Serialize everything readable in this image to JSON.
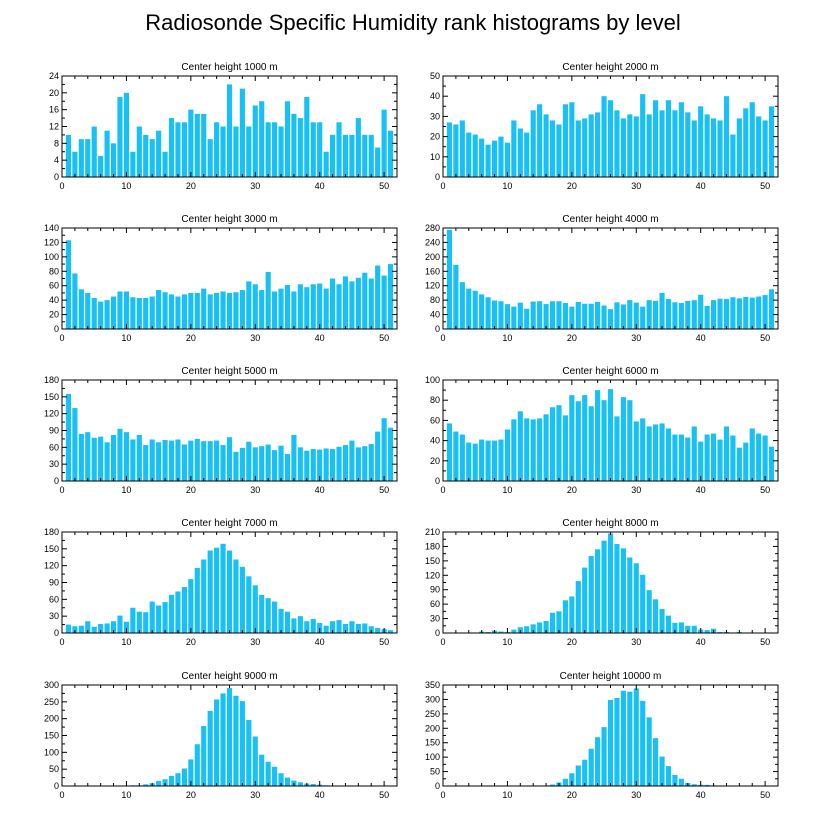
{
  "chart_data": {
    "type": "bar",
    "title": "Radiosonde Specific Humidity rank histograms by level",
    "x_ticks": [
      0,
      10,
      20,
      30,
      40,
      50
    ],
    "panels": [
      {
        "title": "Center height 1000 m",
        "ylim": [
          0,
          24
        ],
        "yticks": [
          0,
          4,
          8,
          12,
          16,
          20,
          24
        ],
        "values": [
          10,
          6,
          9,
          9,
          12,
          5,
          11,
          8,
          19,
          20,
          6,
          12,
          10,
          9,
          11,
          6,
          14,
          13,
          13,
          16,
          15,
          15,
          9,
          13,
          12,
          22,
          12,
          21,
          12,
          17,
          18,
          13,
          13,
          12,
          18,
          15,
          14,
          19,
          13,
          13,
          6,
          10,
          13,
          10,
          10,
          14,
          10,
          10,
          7,
          16,
          11
        ]
      },
      {
        "title": "Center height 2000 m",
        "ylim": [
          0,
          50
        ],
        "yticks": [
          0,
          10,
          20,
          30,
          40,
          50
        ],
        "values": [
          27,
          26,
          28,
          22,
          21,
          19,
          16,
          18,
          20,
          17,
          28,
          24,
          22,
          33,
          36,
          31,
          28,
          26,
          36,
          37,
          28,
          29,
          31,
          32,
          40,
          38,
          33,
          29,
          31,
          30,
          41,
          31,
          38,
          33,
          38,
          33,
          37,
          32,
          28,
          35,
          31,
          29,
          28,
          40,
          21,
          29,
          34,
          37,
          30,
          28,
          35
        ]
      },
      {
        "title": "Center height 3000 m",
        "ylim": [
          0,
          140
        ],
        "yticks": [
          0,
          20,
          40,
          60,
          80,
          100,
          120,
          140
        ],
        "values": [
          123,
          77,
          55,
          50,
          43,
          38,
          40,
          45,
          52,
          52,
          44,
          43,
          43,
          45,
          54,
          51,
          48,
          45,
          48,
          50,
          50,
          56,
          48,
          50,
          52,
          50,
          51,
          54,
          66,
          62,
          54,
          79,
          52,
          56,
          61,
          52,
          62,
          58,
          62,
          63,
          56,
          70,
          62,
          73,
          66,
          71,
          78,
          70,
          88,
          74,
          90
        ]
      },
      {
        "title": "Center height 4000 m",
        "ylim": [
          0,
          280
        ],
        "yticks": [
          0,
          40,
          80,
          120,
          160,
          200,
          240,
          280
        ],
        "values": [
          275,
          178,
          130,
          112,
          106,
          96,
          88,
          79,
          77,
          69,
          62,
          73,
          56,
          76,
          77,
          69,
          77,
          77,
          72,
          62,
          75,
          70,
          70,
          75,
          65,
          55,
          74,
          68,
          80,
          73,
          62,
          80,
          78,
          100,
          83,
          74,
          72,
          78,
          80,
          95,
          64,
          80,
          84,
          83,
          88,
          85,
          89,
          87,
          90,
          94,
          110
        ]
      },
      {
        "title": "Center height 5000 m",
        "ylim": [
          0,
          180
        ],
        "yticks": [
          0,
          30,
          60,
          90,
          120,
          150,
          180
        ],
        "values": [
          155,
          130,
          84,
          87,
          77,
          79,
          69,
          82,
          93,
          87,
          74,
          82,
          64,
          74,
          69,
          73,
          72,
          74,
          65,
          72,
          75,
          71,
          71,
          72,
          64,
          78,
          52,
          59,
          70,
          60,
          62,
          65,
          55,
          63,
          48,
          82,
          60,
          54,
          57,
          56,
          58,
          57,
          61,
          64,
          72,
          60,
          62,
          66,
          88,
          112,
          95
        ]
      },
      {
        "title": "Center height 6000 m",
        "ylim": [
          0,
          100
        ],
        "yticks": [
          0,
          20,
          40,
          60,
          80,
          100
        ],
        "values": [
          57,
          49,
          46,
          38,
          37,
          41,
          40,
          40,
          41,
          51,
          61,
          69,
          62,
          61,
          62,
          66,
          73,
          75,
          65,
          85,
          79,
          85,
          74,
          90,
          80,
          91,
          64,
          83,
          80,
          59,
          62,
          54,
          56,
          57,
          52,
          46,
          46,
          43,
          54,
          39,
          46,
          47,
          41,
          54,
          45,
          33,
          38,
          52,
          47,
          45,
          34
        ]
      },
      {
        "title": "Center height 7000 m",
        "ylim": [
          0,
          180
        ],
        "yticks": [
          0,
          30,
          60,
          90,
          120,
          150,
          180
        ],
        "values": [
          15,
          12,
          13,
          21,
          11,
          16,
          17,
          21,
          31,
          20,
          45,
          38,
          37,
          56,
          49,
          55,
          68,
          74,
          82,
          96,
          116,
          131,
          147,
          152,
          159,
          147,
          131,
          118,
          101,
          85,
          68,
          62,
          56,
          43,
          38,
          26,
          30,
          21,
          25,
          18,
          13,
          21,
          23,
          16,
          21,
          16,
          17,
          12,
          9,
          7,
          5
        ]
      },
      {
        "title": "Center height 8000 m",
        "ylim": [
          0,
          210
        ],
        "yticks": [
          0,
          30,
          60,
          90,
          120,
          150,
          180,
          210
        ],
        "values": [
          0,
          0,
          0,
          1,
          1,
          3,
          2,
          5,
          3,
          2,
          7,
          12,
          14,
          18,
          22,
          25,
          42,
          45,
          68,
          76,
          108,
          136,
          160,
          174,
          192,
          207,
          185,
          176,
          157,
          145,
          121,
          89,
          70,
          50,
          36,
          21,
          22,
          15,
          15,
          7,
          6,
          9,
          2,
          2,
          1,
          2,
          1,
          0,
          0,
          0,
          0
        ]
      },
      {
        "title": "Center height 9000 m",
        "ylim": [
          0,
          300
        ],
        "yticks": [
          0,
          50,
          100,
          150,
          200,
          250,
          300
        ],
        "values": [
          0,
          0,
          0,
          0,
          0,
          0,
          0,
          0,
          0,
          1,
          2,
          2,
          5,
          8,
          15,
          20,
          30,
          38,
          52,
          79,
          124,
          178,
          223,
          257,
          275,
          291,
          268,
          252,
          196,
          147,
          93,
          72,
          57,
          38,
          25,
          16,
          11,
          7,
          6,
          4,
          2,
          1,
          1,
          1,
          0,
          0,
          0,
          0,
          0,
          0,
          0
        ]
      },
      {
        "title": "Center height 10000 m",
        "ylim": [
          0,
          350
        ],
        "yticks": [
          0,
          50,
          100,
          150,
          200,
          250,
          300,
          350
        ],
        "values": [
          0,
          0,
          0,
          0,
          0,
          0,
          0,
          0,
          0,
          0,
          0,
          0,
          0,
          0,
          0,
          2,
          5,
          12,
          25,
          44,
          71,
          91,
          129,
          169,
          204,
          298,
          305,
          330,
          327,
          338,
          295,
          238,
          166,
          102,
          69,
          38,
          25,
          10,
          6,
          4,
          4,
          2,
          0,
          0,
          0,
          0,
          0,
          0,
          0,
          0,
          0
        ]
      }
    ]
  }
}
